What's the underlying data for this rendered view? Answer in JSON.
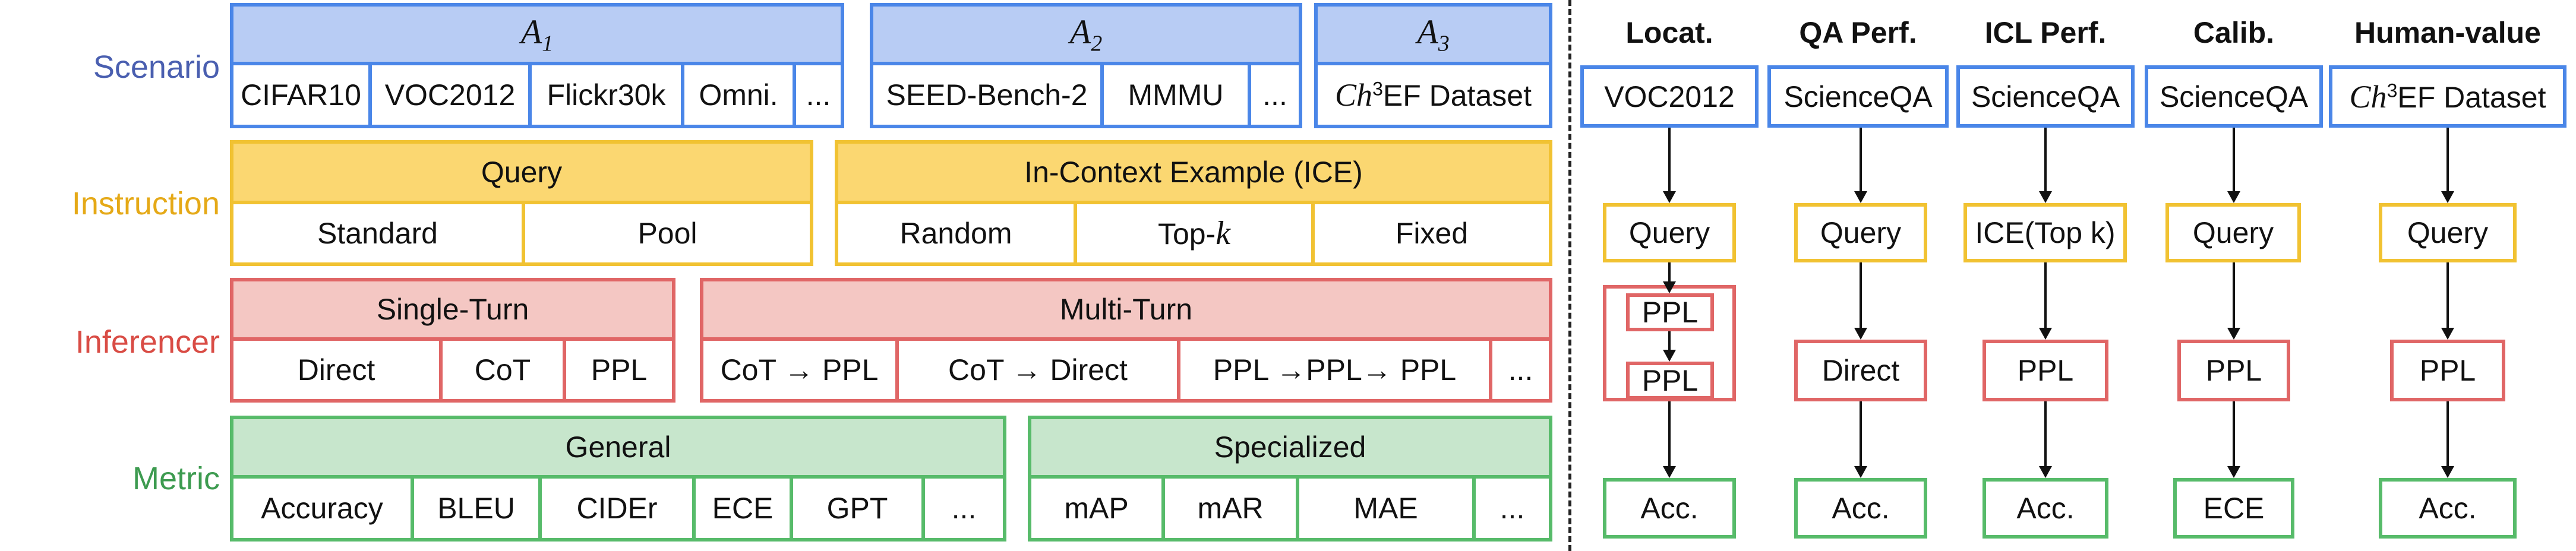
{
  "rows": {
    "scenario": "Scenario",
    "instruction": "Instruction",
    "inferencer": "Inferencer",
    "metric": "Metric"
  },
  "scenario": {
    "groups": [
      {
        "title_main": "A",
        "title_sub": "1",
        "items": [
          "CIFAR10",
          "VOC2012",
          "Flickr30k",
          "Omni.",
          "..."
        ]
      },
      {
        "title_main": "A",
        "title_sub": "2",
        "items": [
          "SEED-Bench-2",
          "MMMU",
          "..."
        ]
      },
      {
        "title_main": "A",
        "title_sub": "3",
        "item_prefix": "Ch",
        "item_sup": "3",
        "item_suffix": "EF Dataset"
      }
    ]
  },
  "instruction": {
    "query": {
      "title": "Query",
      "items": [
        "Standard",
        "Pool"
      ]
    },
    "ice": {
      "title": "In-Context Example (ICE)",
      "items": [
        "Random",
        "Top-",
        "Fixed"
      ],
      "topk_var": "k"
    }
  },
  "inferencer": {
    "single": {
      "title": "Single-Turn",
      "items": [
        "Direct",
        "CoT",
        "PPL"
      ]
    },
    "multi": {
      "title": "Multi-Turn",
      "items": [
        "CoT → PPL",
        "CoT → Direct",
        "PPL →PPL→ PPL",
        "..."
      ]
    }
  },
  "metric": {
    "general": {
      "title": "General",
      "items": [
        "Accuracy",
        "BLEU",
        "CIDEr",
        "ECE",
        "GPT",
        "..."
      ]
    },
    "specialized": {
      "title": "Specialized",
      "items": [
        "mAP",
        "mAR",
        "MAE",
        "..."
      ]
    }
  },
  "pipelines": [
    {
      "title": "Locat.",
      "dataset": "VOC2012",
      "instruction": "Query",
      "inferencer": [
        "PPL",
        "PPL"
      ],
      "metric": "Acc."
    },
    {
      "title": "QA Perf.",
      "dataset": "ScienceQA",
      "instruction": "Query",
      "inferencer": [
        "Direct"
      ],
      "metric": "Acc."
    },
    {
      "title": "ICL Perf.",
      "dataset": "ScienceQA",
      "instruction": "ICE(Top k)",
      "inferencer": [
        "PPL"
      ],
      "metric": "Acc."
    },
    {
      "title": "Calib.",
      "dataset": "ScienceQA",
      "instruction": "Query",
      "inferencer": [
        "PPL"
      ],
      "metric": "ECE"
    },
    {
      "title": "Human-value",
      "dataset_prefix": "Ch",
      "dataset_sup": "3",
      "dataset_suffix": "EF Dataset",
      "instruction": "Query",
      "inferencer": [
        "PPL"
      ],
      "metric": "Acc."
    }
  ],
  "colors": {
    "scenario": "#4a86e8",
    "instruction": "#f1c232",
    "inferencer": "#e06666",
    "metric": "#57bb6a"
  }
}
